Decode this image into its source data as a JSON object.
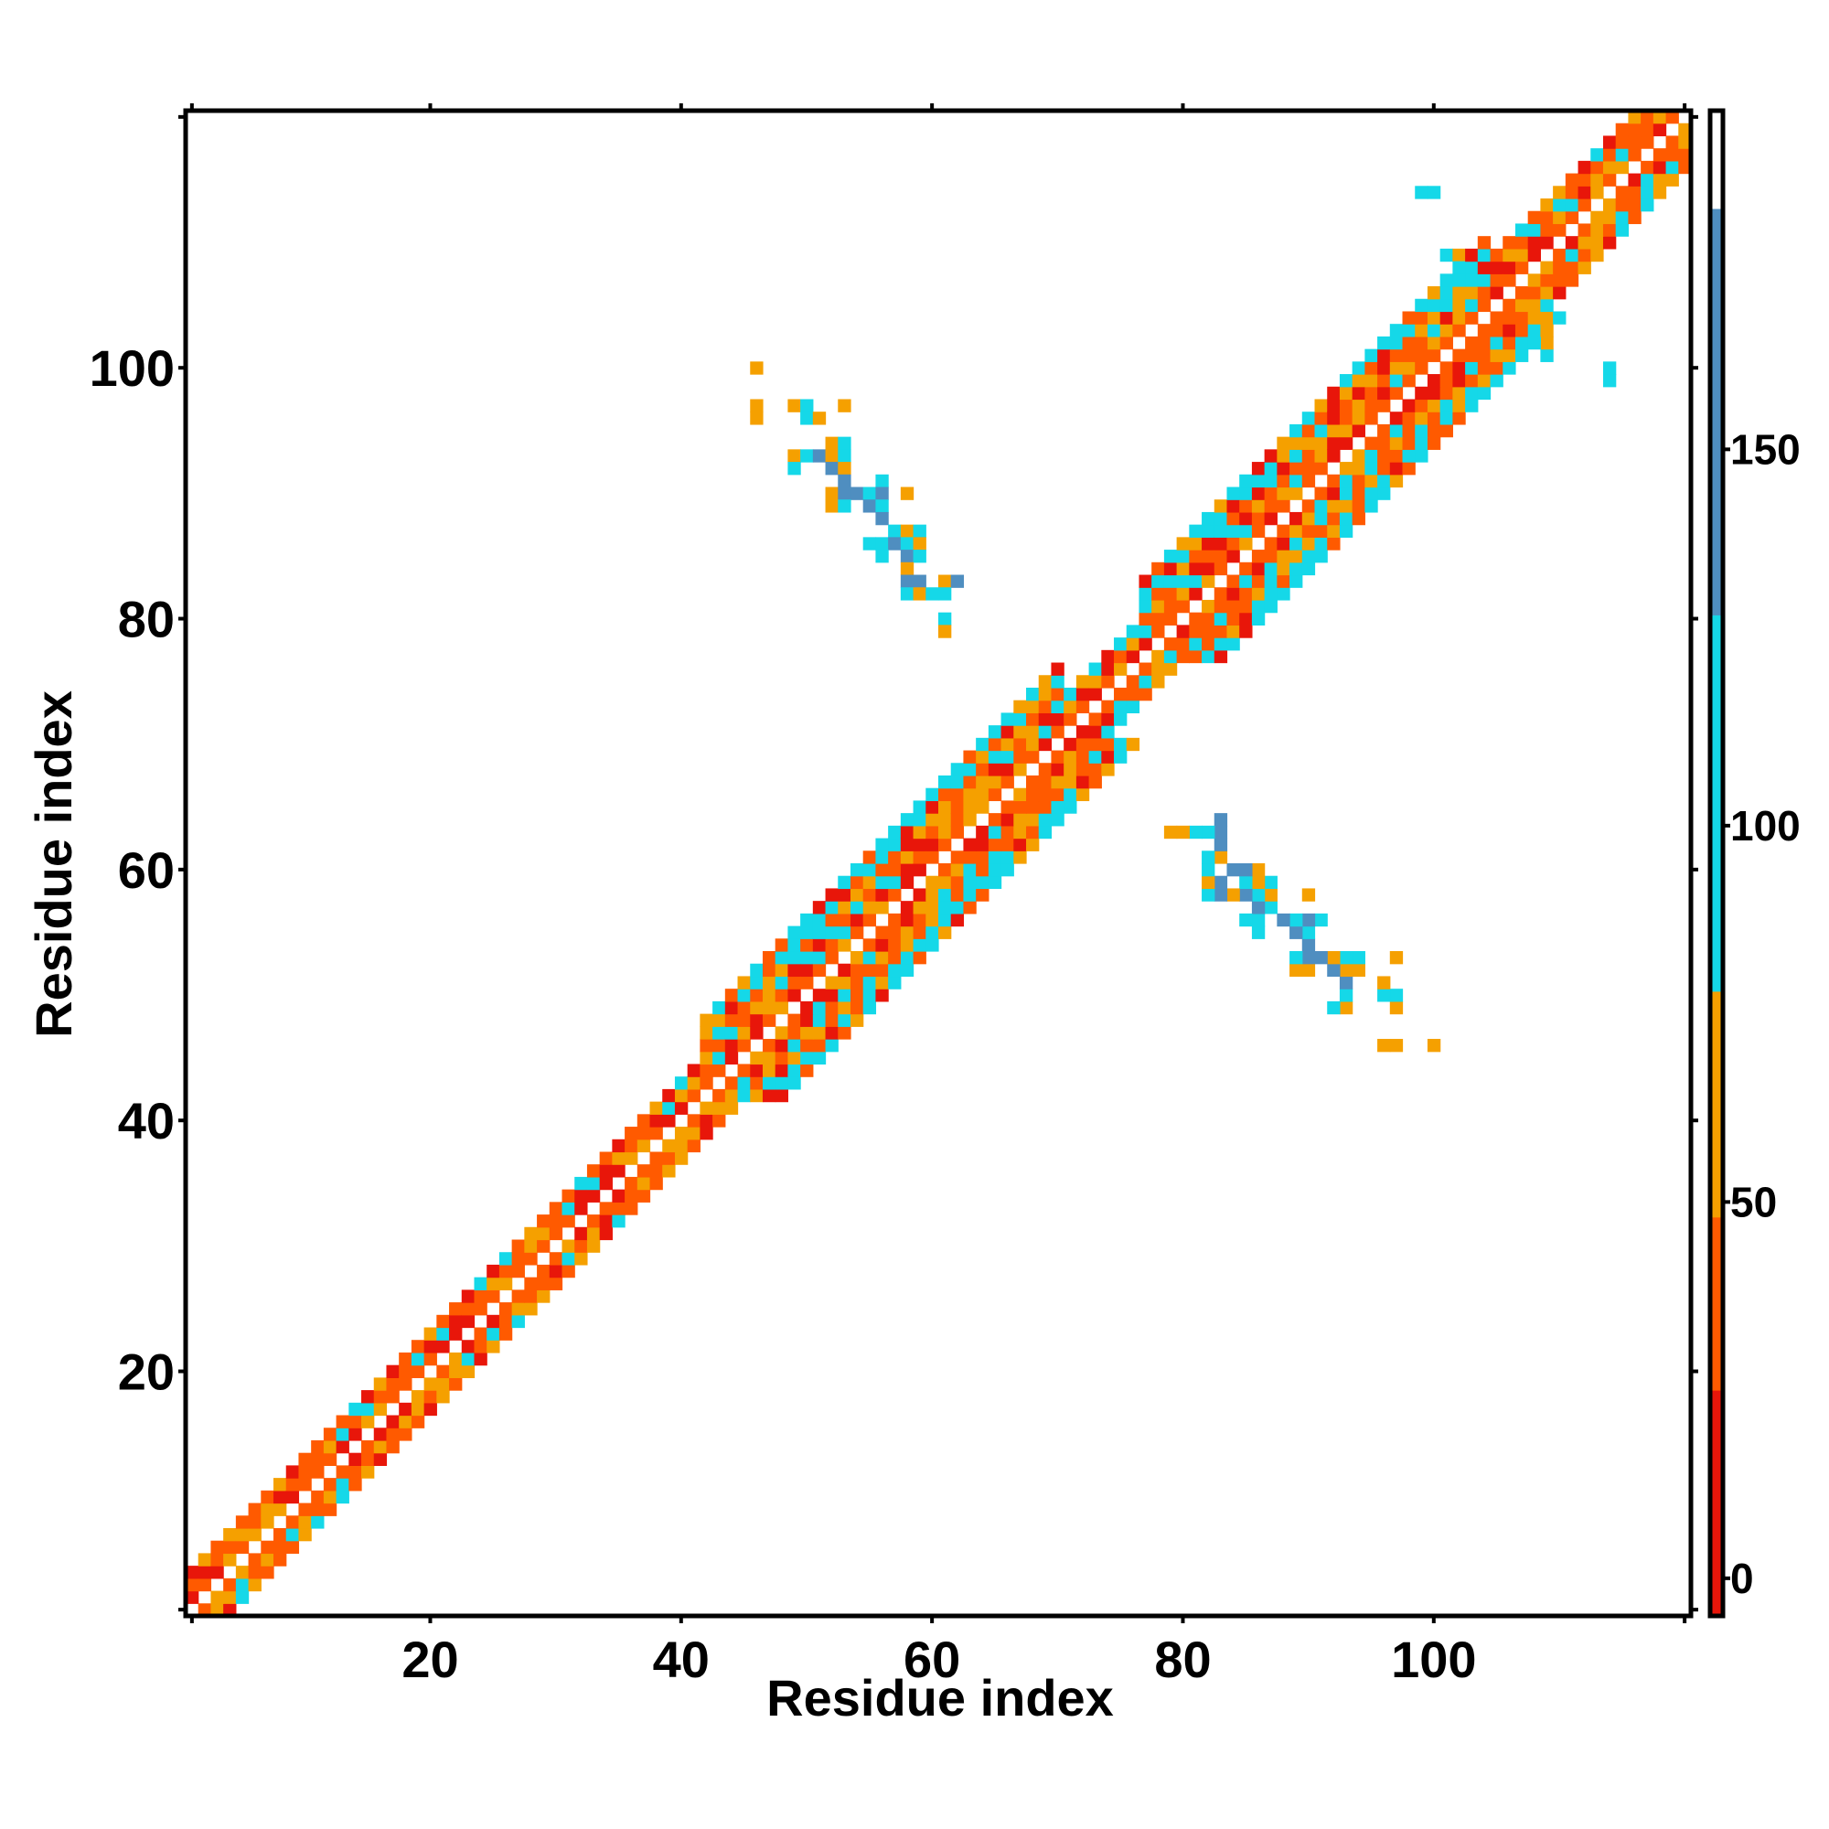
{
  "chart_data": {
    "type": "heatmap",
    "title": "",
    "xlabel": "Residue index",
    "ylabel": "Residue index",
    "xlim": [
      1,
      120
    ],
    "ylim": [
      1,
      120
    ],
    "xticks": [
      20,
      40,
      60,
      80,
      100
    ],
    "yticks": [
      20,
      40,
      60,
      80,
      100
    ],
    "x_tick_labels": [
      "20",
      "40",
      "60",
      "80",
      "100"
    ],
    "y_tick_labels": [
      "20",
      "40",
      "60",
      "80",
      "100"
    ],
    "colorbar": {
      "range": [
        -5,
        195
      ],
      "ticks": [
        0,
        50,
        100,
        150
      ],
      "tick_labels": [
        "0",
        "50",
        "100",
        "150"
      ],
      "bands": [
        {
          "from": -5,
          "to": 25,
          "color": "#e8160a"
        },
        {
          "from": 25,
          "to": 48,
          "color": "#ff5a00"
        },
        {
          "from": 48,
          "to": 78,
          "color": "#f5a000"
        },
        {
          "from": 78,
          "to": 128,
          "color": "#15d8e8"
        },
        {
          "from": 128,
          "to": 182,
          "color": "#4f8ec0"
        },
        {
          "from": 182,
          "to": 195,
          "color": "#ffffff"
        }
      ]
    },
    "colors": {
      "red": "#e8160a",
      "orange_red": "#ff5a00",
      "orange": "#f5a000",
      "cyan": "#15d8e8",
      "steel_blue": "#4f8ec0"
    },
    "diagonal_band": [
      {
        "x_from": 1,
        "x_to": 41,
        "half_width": 3,
        "dominant": "orange",
        "secondary": "cyan"
      },
      {
        "x_from": 42,
        "x_to": 70,
        "half_width": 6,
        "dominant": "orange",
        "secondary": "cyan"
      },
      {
        "x_from": 71,
        "x_to": 76,
        "half_width": 3,
        "dominant": "cyan",
        "secondary": "orange"
      },
      {
        "x_from": 77,
        "x_to": 104,
        "half_width": 6,
        "dominant": "orange",
        "secondary": "cyan"
      },
      {
        "x_from": 105,
        "x_to": 120,
        "half_width": 4,
        "dominant": "orange",
        "secondary": "cyan"
      }
    ],
    "off_diagonal_contacts": [
      {
        "x": 46,
        "y": 100,
        "c": "orange"
      },
      {
        "x": 46,
        "y": 97,
        "c": "orange"
      },
      {
        "x": 46,
        "y": 96,
        "c": "orange"
      },
      {
        "x": 49,
        "y": 97,
        "c": "orange"
      },
      {
        "x": 50,
        "y": 97,
        "c": "cyan"
      },
      {
        "x": 53,
        "y": 97,
        "c": "orange"
      },
      {
        "x": 50,
        "y": 96,
        "c": "cyan"
      },
      {
        "x": 51,
        "y": 96,
        "c": "orange"
      },
      {
        "x": 52,
        "y": 94,
        "c": "orange"
      },
      {
        "x": 53,
        "y": 94,
        "c": "cyan"
      },
      {
        "x": 49,
        "y": 93,
        "c": "orange"
      },
      {
        "x": 50,
        "y": 93,
        "c": "cyan"
      },
      {
        "x": 51,
        "y": 93,
        "c": "steel_blue"
      },
      {
        "x": 52,
        "y": 93,
        "c": "orange"
      },
      {
        "x": 53,
        "y": 93,
        "c": "cyan"
      },
      {
        "x": 49,
        "y": 92,
        "c": "cyan"
      },
      {
        "x": 52,
        "y": 92,
        "c": "steel_blue"
      },
      {
        "x": 53,
        "y": 92,
        "c": "orange"
      },
      {
        "x": 53,
        "y": 91,
        "c": "steel_blue"
      },
      {
        "x": 56,
        "y": 91,
        "c": "cyan"
      },
      {
        "x": 52,
        "y": 90,
        "c": "orange"
      },
      {
        "x": 53,
        "y": 90,
        "c": "steel_blue"
      },
      {
        "x": 54,
        "y": 90,
        "c": "steel_blue"
      },
      {
        "x": 55,
        "y": 90,
        "c": "cyan"
      },
      {
        "x": 56,
        "y": 90,
        "c": "steel_blue"
      },
      {
        "x": 58,
        "y": 90,
        "c": "orange"
      },
      {
        "x": 52,
        "y": 89,
        "c": "orange"
      },
      {
        "x": 53,
        "y": 89,
        "c": "cyan"
      },
      {
        "x": 55,
        "y": 89,
        "c": "steel_blue"
      },
      {
        "x": 56,
        "y": 89,
        "c": "cyan"
      },
      {
        "x": 56,
        "y": 88,
        "c": "steel_blue"
      },
      {
        "x": 57,
        "y": 87,
        "c": "cyan"
      },
      {
        "x": 58,
        "y": 87,
        "c": "orange"
      },
      {
        "x": 59,
        "y": 87,
        "c": "cyan"
      },
      {
        "x": 55,
        "y": 86,
        "c": "cyan"
      },
      {
        "x": 56,
        "y": 86,
        "c": "cyan"
      },
      {
        "x": 57,
        "y": 86,
        "c": "steel_blue"
      },
      {
        "x": 58,
        "y": 86,
        "c": "cyan"
      },
      {
        "x": 59,
        "y": 86,
        "c": "orange"
      },
      {
        "x": 56,
        "y": 85,
        "c": "cyan"
      },
      {
        "x": 58,
        "y": 85,
        "c": "steel_blue"
      },
      {
        "x": 59,
        "y": 85,
        "c": "cyan"
      },
      {
        "x": 58,
        "y": 84,
        "c": "orange"
      },
      {
        "x": 58,
        "y": 83,
        "c": "steel_blue"
      },
      {
        "x": 59,
        "y": 83,
        "c": "steel_blue"
      },
      {
        "x": 61,
        "y": 83,
        "c": "orange"
      },
      {
        "x": 62,
        "y": 83,
        "c": "steel_blue"
      },
      {
        "x": 58,
        "y": 82,
        "c": "cyan"
      },
      {
        "x": 59,
        "y": 82,
        "c": "orange"
      },
      {
        "x": 60,
        "y": 82,
        "c": "cyan"
      },
      {
        "x": 61,
        "y": 82,
        "c": "cyan"
      },
      {
        "x": 61,
        "y": 80,
        "c": "cyan"
      },
      {
        "x": 61,
        "y": 79,
        "c": "orange"
      },
      {
        "x": 100,
        "y": 46,
        "c": "orange"
      },
      {
        "x": 97,
        "y": 46,
        "c": "orange"
      },
      {
        "x": 96,
        "y": 46,
        "c": "orange"
      },
      {
        "x": 97,
        "y": 49,
        "c": "orange"
      },
      {
        "x": 97,
        "y": 50,
        "c": "cyan"
      },
      {
        "x": 97,
        "y": 53,
        "c": "orange"
      },
      {
        "x": 96,
        "y": 50,
        "c": "cyan"
      },
      {
        "x": 96,
        "y": 51,
        "c": "orange"
      },
      {
        "x": 94,
        "y": 52,
        "c": "orange"
      },
      {
        "x": 94,
        "y": 53,
        "c": "cyan"
      },
      {
        "x": 93,
        "y": 49,
        "c": "orange"
      },
      {
        "x": 93,
        "y": 50,
        "c": "cyan"
      },
      {
        "x": 93,
        "y": 51,
        "c": "steel_blue"
      },
      {
        "x": 93,
        "y": 52,
        "c": "orange"
      },
      {
        "x": 93,
        "y": 53,
        "c": "cyan"
      },
      {
        "x": 92,
        "y": 49,
        "c": "cyan"
      },
      {
        "x": 92,
        "y": 52,
        "c": "steel_blue"
      },
      {
        "x": 92,
        "y": 53,
        "c": "orange"
      },
      {
        "x": 91,
        "y": 53,
        "c": "steel_blue"
      },
      {
        "x": 91,
        "y": 56,
        "c": "cyan"
      },
      {
        "x": 90,
        "y": 52,
        "c": "orange"
      },
      {
        "x": 90,
        "y": 53,
        "c": "steel_blue"
      },
      {
        "x": 90,
        "y": 54,
        "c": "steel_blue"
      },
      {
        "x": 90,
        "y": 55,
        "c": "cyan"
      },
      {
        "x": 90,
        "y": 56,
        "c": "steel_blue"
      },
      {
        "x": 90,
        "y": 58,
        "c": "orange"
      },
      {
        "x": 89,
        "y": 52,
        "c": "orange"
      },
      {
        "x": 89,
        "y": 53,
        "c": "cyan"
      },
      {
        "x": 89,
        "y": 55,
        "c": "steel_blue"
      },
      {
        "x": 89,
        "y": 56,
        "c": "cyan"
      },
      {
        "x": 88,
        "y": 56,
        "c": "steel_blue"
      },
      {
        "x": 87,
        "y": 57,
        "c": "cyan"
      },
      {
        "x": 87,
        "y": 58,
        "c": "orange"
      },
      {
        "x": 87,
        "y": 59,
        "c": "cyan"
      },
      {
        "x": 86,
        "y": 55,
        "c": "cyan"
      },
      {
        "x": 86,
        "y": 56,
        "c": "cyan"
      },
      {
        "x": 86,
        "y": 57,
        "c": "steel_blue"
      },
      {
        "x": 86,
        "y": 58,
        "c": "cyan"
      },
      {
        "x": 86,
        "y": 59,
        "c": "orange"
      },
      {
        "x": 86,
        "y": 60,
        "c": "orange"
      },
      {
        "x": 85,
        "y": 56,
        "c": "cyan"
      },
      {
        "x": 85,
        "y": 58,
        "c": "steel_blue"
      },
      {
        "x": 85,
        "y": 59,
        "c": "cyan"
      },
      {
        "x": 85,
        "y": 60,
        "c": "steel_blue"
      },
      {
        "x": 84,
        "y": 58,
        "c": "orange"
      },
      {
        "x": 84,
        "y": 60,
        "c": "steel_blue"
      },
      {
        "x": 83,
        "y": 58,
        "c": "steel_blue"
      },
      {
        "x": 83,
        "y": 59,
        "c": "steel_blue"
      },
      {
        "x": 83,
        "y": 61,
        "c": "orange"
      },
      {
        "x": 83,
        "y": 62,
        "c": "steel_blue"
      },
      {
        "x": 83,
        "y": 63,
        "c": "steel_blue"
      },
      {
        "x": 83,
        "y": 64,
        "c": "steel_blue"
      },
      {
        "x": 82,
        "y": 58,
        "c": "cyan"
      },
      {
        "x": 82,
        "y": 59,
        "c": "orange"
      },
      {
        "x": 82,
        "y": 60,
        "c": "cyan"
      },
      {
        "x": 82,
        "y": 61,
        "c": "cyan"
      },
      {
        "x": 82,
        "y": 63,
        "c": "cyan"
      },
      {
        "x": 81,
        "y": 63,
        "c": "cyan"
      },
      {
        "x": 80,
        "y": 63,
        "c": "orange"
      },
      {
        "x": 79,
        "y": 63,
        "c": "orange"
      },
      {
        "x": 99,
        "y": 114,
        "c": "cyan"
      },
      {
        "x": 100,
        "y": 114,
        "c": "cyan"
      },
      {
        "x": 114,
        "y": 100,
        "c": "cyan"
      },
      {
        "x": 114,
        "y": 99,
        "c": "cyan"
      },
      {
        "x": 101,
        "y": 109,
        "c": "cyan"
      },
      {
        "x": 102,
        "y": 109,
        "c": "orange"
      },
      {
        "x": 109,
        "y": 101,
        "c": "cyan"
      },
      {
        "x": 109,
        "y": 102,
        "c": "orange"
      }
    ]
  }
}
